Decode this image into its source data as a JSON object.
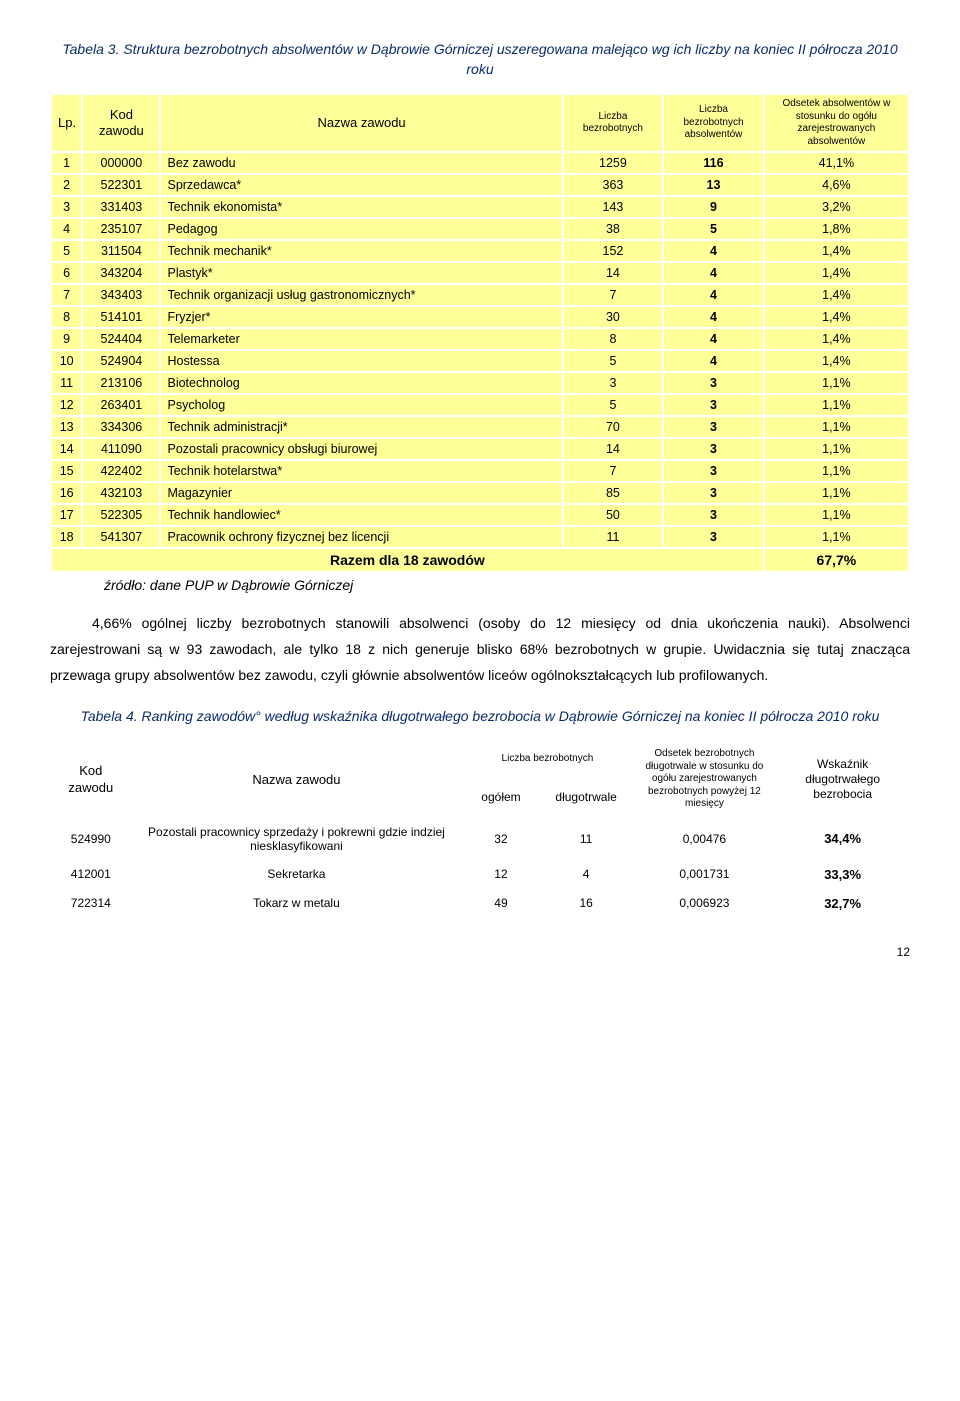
{
  "table1": {
    "title": "Tabela 3. Struktura bezrobotnych absolwentów w Dąbrowie Górniczej uszeregowana malejąco wg ich liczby na koniec II półrocza 2010 roku",
    "headers": {
      "lp": "Lp.",
      "kod": "Kod zawodu",
      "nazwa": "Nazwa zawodu",
      "liczba_bez": "Liczba bezrobotnych",
      "liczba_bez_abs": "Liczba bezrobotnych absolwentów",
      "odsetek": "Odsetek absolwentów w stosunku do ogółu zarejestrowanych absolwentów"
    },
    "rows": [
      {
        "lp": "1",
        "kod": "000000",
        "nazwa": "Bez zawodu",
        "lb": "1259",
        "lba": "116",
        "ods": "41,1%"
      },
      {
        "lp": "2",
        "kod": "522301",
        "nazwa": "Sprzedawca*",
        "lb": "363",
        "lba": "13",
        "ods": "4,6%"
      },
      {
        "lp": "3",
        "kod": "331403",
        "nazwa": "Technik ekonomista*",
        "lb": "143",
        "lba": "9",
        "ods": "3,2%"
      },
      {
        "lp": "4",
        "kod": "235107",
        "nazwa": "Pedagog",
        "lb": "38",
        "lba": "5",
        "ods": "1,8%"
      },
      {
        "lp": "5",
        "kod": "311504",
        "nazwa": "Technik mechanik*",
        "lb": "152",
        "lba": "4",
        "ods": "1,4%"
      },
      {
        "lp": "6",
        "kod": "343204",
        "nazwa": "Plastyk*",
        "lb": "14",
        "lba": "4",
        "ods": "1,4%"
      },
      {
        "lp": "7",
        "kod": "343403",
        "nazwa": "Technik organizacji usług gastronomicznych*",
        "lb": "7",
        "lba": "4",
        "ods": "1,4%"
      },
      {
        "lp": "8",
        "kod": "514101",
        "nazwa": "Fryzjer*",
        "lb": "30",
        "lba": "4",
        "ods": "1,4%"
      },
      {
        "lp": "9",
        "kod": "524404",
        "nazwa": "Telemarketer",
        "lb": "8",
        "lba": "4",
        "ods": "1,4%"
      },
      {
        "lp": "10",
        "kod": "524904",
        "nazwa": "Hostessa",
        "lb": "5",
        "lba": "4",
        "ods": "1,4%"
      },
      {
        "lp": "11",
        "kod": "213106",
        "nazwa": "Biotechnolog",
        "lb": "3",
        "lba": "3",
        "ods": "1,1%"
      },
      {
        "lp": "12",
        "kod": "263401",
        "nazwa": "Psycholog",
        "lb": "5",
        "lba": "3",
        "ods": "1,1%"
      },
      {
        "lp": "13",
        "kod": "334306",
        "nazwa": "Technik administracji*",
        "lb": "70",
        "lba": "3",
        "ods": "1,1%"
      },
      {
        "lp": "14",
        "kod": "411090",
        "nazwa": "Pozostali pracownicy obsługi biurowej",
        "lb": "14",
        "lba": "3",
        "ods": "1,1%"
      },
      {
        "lp": "15",
        "kod": "422402",
        "nazwa": "Technik hotelarstwa*",
        "lb": "7",
        "lba": "3",
        "ods": "1,1%"
      },
      {
        "lp": "16",
        "kod": "432103",
        "nazwa": "Magazynier",
        "lb": "85",
        "lba": "3",
        "ods": "1,1%"
      },
      {
        "lp": "17",
        "kod": "522305",
        "nazwa": "Technik handlowiec*",
        "lb": "50",
        "lba": "3",
        "ods": "1,1%"
      },
      {
        "lp": "18",
        "kod": "541307",
        "nazwa": "Pracownik ochrony fizycznej bez licencji",
        "lb": "11",
        "lba": "3",
        "ods": "1,1%"
      }
    ],
    "total": {
      "label": "Razem dla 18 zawodów",
      "value": "67,7%"
    },
    "source": "źródło: dane PUP w Dąbrowie Górniczej"
  },
  "paragraph": "4,66% ogólnej liczby bezrobotnych stanowili absolwenci (osoby do 12 miesięcy od dnia ukończenia nauki). Absolwenci zarejestrowani są w 93 zawodach, ale tylko 18 z nich generuje blisko 68% bezrobotnych w grupie. Uwidacznia się tutaj znacząca przewaga grupy absolwentów bez zawodu, czyli głównie absolwentów liceów ogólnokształcących lub profilowanych.",
  "table2": {
    "title": "Tabela 4. Ranking zawodów° według wskaźnika długotrwałego bezrobocia w Dąbrowie Górniczej na koniec II półrocza 2010 roku",
    "headers": {
      "kod": "Kod zawodu",
      "nazwa": "Nazwa zawodu",
      "liczba_bez": "Liczba bezrobotnych",
      "ogolem": "ogółem",
      "dlugo": "długotrwale",
      "odsetek": "Odsetek bezrobotnych długotrwale w stosunku do ogółu zarejestrowanych bezrobotnych powyżej 12 miesięcy",
      "wsk": "Wskaźnik długotrwałego bezrobocia"
    },
    "rows": [
      {
        "kod": "524990",
        "nazwa": "Pozostali pracownicy sprzedaży i pokrewni gdzie indziej niesklasyfikowani",
        "og": "32",
        "dl": "11",
        "ods": "0,00476",
        "wsk": "34,4%"
      },
      {
        "kod": "412001",
        "nazwa": "Sekretarka",
        "og": "12",
        "dl": "4",
        "ods": "0,001731",
        "wsk": "33,3%"
      },
      {
        "kod": "722314",
        "nazwa": "Tokarz w metalu",
        "og": "49",
        "dl": "16",
        "ods": "0,006923",
        "wsk": "32,7%"
      }
    ]
  },
  "page_number": "12"
}
